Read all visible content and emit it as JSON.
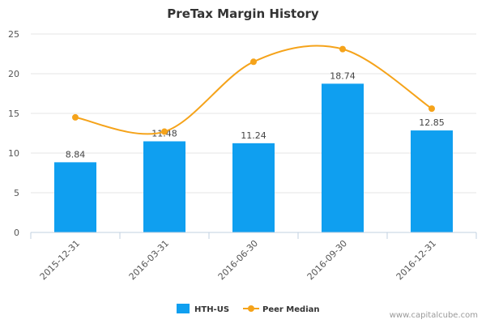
{
  "chart_data": {
    "type": "bar",
    "title": "PreTax Margin History",
    "categories": [
      "2015-12-31",
      "2016-03-31",
      "2016-06-30",
      "2016-09-30",
      "2016-12-31"
    ],
    "ylim": [
      0,
      25
    ],
    "yticks": [
      0,
      5,
      10,
      15,
      20,
      25
    ],
    "grid": true,
    "legend_position": "bottom",
    "series": [
      {
        "name": "HTH-US",
        "kind": "bar",
        "color": "#0f9ff0",
        "values": [
          8.84,
          11.48,
          11.24,
          18.74,
          12.85
        ],
        "value_labels": [
          "8.84",
          "11.48",
          "11.24",
          "18.74",
          "12.85"
        ]
      },
      {
        "name": "Peer Median",
        "kind": "line",
        "smooth": true,
        "color": "#f5a31a",
        "values": [
          14.5,
          12.7,
          21.5,
          23.1,
          15.6
        ]
      }
    ]
  },
  "watermark": "www.capitalcube.com"
}
